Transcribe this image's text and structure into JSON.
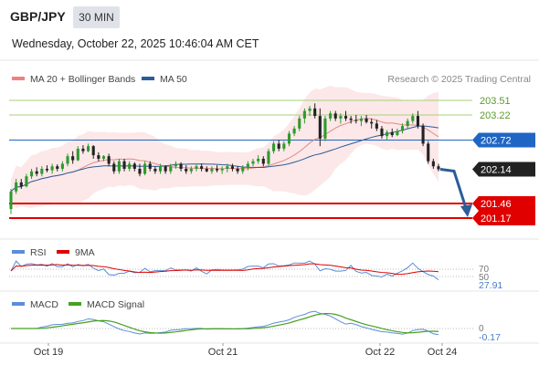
{
  "header": {
    "symbol": "GBP/JPY",
    "timeframe": "30 MIN",
    "datetime": "Wednesday, October 22, 2025 10:46:04 AM CET"
  },
  "legend": {
    "ma20_bb": "MA 20 + Bollinger Bands",
    "ma50": "MA 50",
    "copyright": "Research © 2025 Trading Central"
  },
  "colors": {
    "bb": "#f08080",
    "ma50": "#2a5d9a",
    "ma20": "#e08a8a",
    "up": "#2f9a2f",
    "down": "#222222",
    "resistance": "#a8cf7a",
    "pivot": "#1f66c4",
    "support": "#e00000",
    "current": "#222222",
    "rsi": "#5b8dd8",
    "rsi_ma": "#e00000",
    "macd": "#5b8dd8",
    "macd_signal": "#46a020"
  },
  "levels": [
    {
      "label": "203.51",
      "value": 203.51,
      "kind": "resistance"
    },
    {
      "label": "203.22",
      "value": 203.22,
      "kind": "resistance"
    },
    {
      "label": "202.72",
      "value": 202.72,
      "kind": "pivot"
    },
    {
      "label": "202.14",
      "value": 202.14,
      "kind": "current"
    },
    {
      "label": "201.46",
      "value": 201.46,
      "kind": "support"
    },
    {
      "label": "201.17",
      "value": 201.17,
      "kind": "support"
    }
  ],
  "rsi_panel": {
    "label": "RSI",
    "ma_label": "9MA",
    "level_70": "70",
    "level_50": "50",
    "value": "27.91"
  },
  "macd_panel": {
    "label": "MACD",
    "signal_label": "MACD Signal",
    "zero": "0",
    "value": "-0.17"
  },
  "chart_data": {
    "type": "candlestick",
    "x_ticks": [
      "Oct 19",
      "Oct 21",
      "Oct 22",
      "Oct 24"
    ],
    "y_axis_range": [
      201.2,
      203.7
    ],
    "candles": [
      [
        201.35,
        201.75,
        201.25,
        201.7
      ],
      [
        201.7,
        201.95,
        201.65,
        201.88
      ],
      [
        201.88,
        201.95,
        201.75,
        201.8
      ],
      [
        201.8,
        202.05,
        201.78,
        202.0
      ],
      [
        202.0,
        202.15,
        201.95,
        202.1
      ],
      [
        202.1,
        202.18,
        202.0,
        202.05
      ],
      [
        202.05,
        202.2,
        202.0,
        202.15
      ],
      [
        202.15,
        202.22,
        202.08,
        202.12
      ],
      [
        202.12,
        202.25,
        202.05,
        202.2
      ],
      [
        202.2,
        202.24,
        202.1,
        202.15
      ],
      [
        202.15,
        202.3,
        202.1,
        202.25
      ],
      [
        202.25,
        202.45,
        202.2,
        202.4
      ],
      [
        202.4,
        202.5,
        202.25,
        202.32
      ],
      [
        202.32,
        202.6,
        202.3,
        202.55
      ],
      [
        202.55,
        202.62,
        202.45,
        202.5
      ],
      [
        202.5,
        202.65,
        202.48,
        202.6
      ],
      [
        202.6,
        202.62,
        202.35,
        202.42
      ],
      [
        202.42,
        202.48,
        202.3,
        202.35
      ],
      [
        202.35,
        202.42,
        202.3,
        202.4
      ],
      [
        202.4,
        202.45,
        202.2,
        202.25
      ],
      [
        202.25,
        202.3,
        202.05,
        202.1
      ],
      [
        202.1,
        202.35,
        202.05,
        202.3
      ],
      [
        202.3,
        202.35,
        202.1,
        202.15
      ],
      [
        202.15,
        202.3,
        202.1,
        202.25
      ],
      [
        202.25,
        202.28,
        202.1,
        202.15
      ],
      [
        202.15,
        202.25,
        202.0,
        202.05
      ],
      [
        202.05,
        202.3,
        202.02,
        202.25
      ],
      [
        202.25,
        202.3,
        202.1,
        202.15
      ],
      [
        202.15,
        202.2,
        202.05,
        202.1
      ],
      [
        202.1,
        202.25,
        202.05,
        202.2
      ],
      [
        202.2,
        202.22,
        202.05,
        202.1
      ],
      [
        202.1,
        202.25,
        202.05,
        202.2
      ],
      [
        202.2,
        202.3,
        202.15,
        202.25
      ],
      [
        202.25,
        202.28,
        202.1,
        202.15
      ],
      [
        202.15,
        202.22,
        202.05,
        202.1
      ],
      [
        202.1,
        202.2,
        202.05,
        202.15
      ],
      [
        202.15,
        202.25,
        202.1,
        202.2
      ],
      [
        202.2,
        202.25,
        202.1,
        202.15
      ],
      [
        202.15,
        202.2,
        202.08,
        202.1
      ],
      [
        202.1,
        202.2,
        202.05,
        202.15
      ],
      [
        202.15,
        202.22,
        202.08,
        202.12
      ],
      [
        202.12,
        202.2,
        202.05,
        202.15
      ],
      [
        202.15,
        202.25,
        202.08,
        202.2
      ],
      [
        202.2,
        202.25,
        202.1,
        202.15
      ],
      [
        202.15,
        202.2,
        202.05,
        202.1
      ],
      [
        202.1,
        202.22,
        202.05,
        202.18
      ],
      [
        202.18,
        202.3,
        202.12,
        202.25
      ],
      [
        202.25,
        202.35,
        202.2,
        202.3
      ],
      [
        202.3,
        202.42,
        202.25,
        202.35
      ],
      [
        202.35,
        202.4,
        202.2,
        202.25
      ],
      [
        202.25,
        202.55,
        202.22,
        202.5
      ],
      [
        202.5,
        202.7,
        202.45,
        202.65
      ],
      [
        202.65,
        202.72,
        202.5,
        202.55
      ],
      [
        202.55,
        202.7,
        202.5,
        202.65
      ],
      [
        202.65,
        202.9,
        202.6,
        202.85
      ],
      [
        202.85,
        203.0,
        202.8,
        202.95
      ],
      [
        202.95,
        203.2,
        202.9,
        203.15
      ],
      [
        203.15,
        203.35,
        203.05,
        203.3
      ],
      [
        203.3,
        203.4,
        203.2,
        203.35
      ],
      [
        203.35,
        203.45,
        203.15,
        203.2
      ],
      [
        203.2,
        203.35,
        202.6,
        202.75
      ],
      [
        202.75,
        203.2,
        202.7,
        203.15
      ],
      [
        203.15,
        203.3,
        203.1,
        203.25
      ],
      [
        203.25,
        203.3,
        203.1,
        203.15
      ],
      [
        203.15,
        203.25,
        203.05,
        203.2
      ],
      [
        203.2,
        203.3,
        203.1,
        203.15
      ],
      [
        203.15,
        203.2,
        203.05,
        203.12
      ],
      [
        203.12,
        203.22,
        203.05,
        203.1
      ],
      [
        203.1,
        203.2,
        203.0,
        203.15
      ],
      [
        203.15,
        203.22,
        203.05,
        203.08
      ],
      [
        203.08,
        203.15,
        202.95,
        203.05
      ],
      [
        203.05,
        203.12,
        202.9,
        202.95
      ],
      [
        202.95,
        203.0,
        202.75,
        202.8
      ],
      [
        202.8,
        202.92,
        202.72,
        202.88
      ],
      [
        202.88,
        202.95,
        202.78,
        202.82
      ],
      [
        202.82,
        202.95,
        202.8,
        202.9
      ],
      [
        202.9,
        203.05,
        202.85,
        203.0
      ],
      [
        203.0,
        203.15,
        202.95,
        203.1
      ],
      [
        203.1,
        203.25,
        203.05,
        203.2
      ],
      [
        203.2,
        203.3,
        202.95,
        203.0
      ],
      [
        203.0,
        203.05,
        202.6,
        202.65
      ],
      [
        202.65,
        202.7,
        202.25,
        202.3
      ],
      [
        202.3,
        202.35,
        202.15,
        202.2
      ],
      [
        202.2,
        202.25,
        202.1,
        202.14
      ]
    ],
    "ma50_note": "MA 50 line",
    "rsi_levels": [
      70,
      50
    ],
    "rsi_last": 27.91,
    "macd_last": -0.17
  }
}
